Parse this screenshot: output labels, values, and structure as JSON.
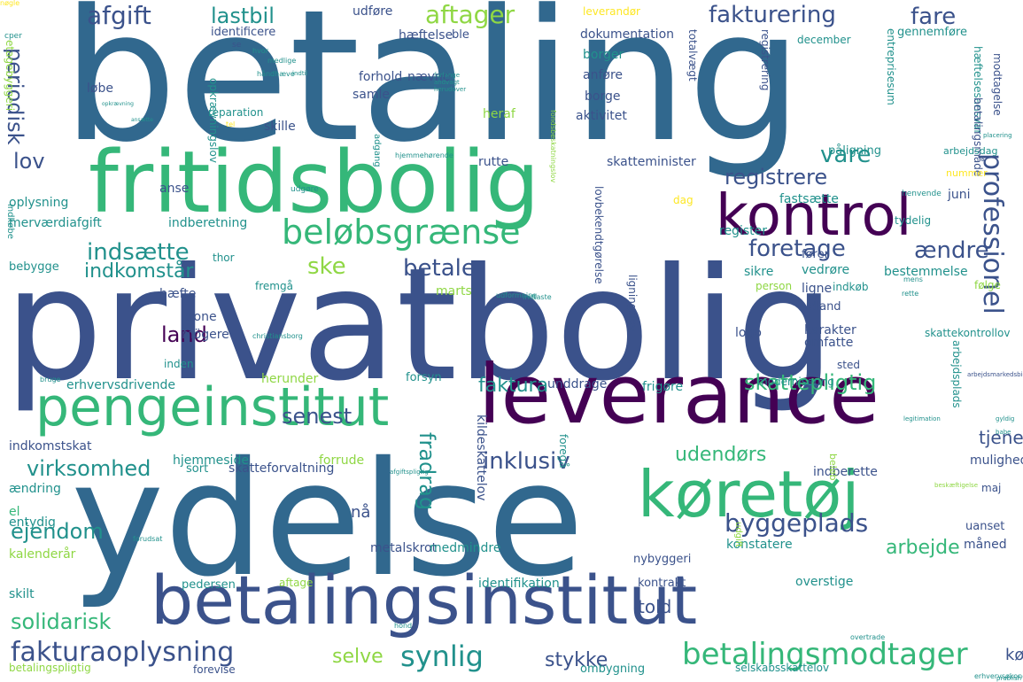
{
  "palette": {
    "purple": "#440154",
    "indigo": "#3b528b",
    "blue": "#31688e",
    "teal": "#21918c",
    "green": "#35b779",
    "lime": "#8fd744",
    "yellow": "#fde725",
    "background": "#ffffff"
  },
  "words": [
    {
      "text": "betaling",
      "color": "blue",
      "rot": 0
    },
    {
      "text": "privatbolig",
      "color": "indigo",
      "rot": 0
    },
    {
      "text": "ydelse",
      "color": "blue",
      "rot": 0
    },
    {
      "text": "fritidsbolig",
      "color": "green",
      "rot": 0
    },
    {
      "text": "betalingsinstitut",
      "color": "indigo",
      "rot": 0
    },
    {
      "text": "leverance",
      "color": "purple",
      "rot": 0
    },
    {
      "text": "pengeinstitut",
      "color": "green",
      "rot": 0
    },
    {
      "text": "køretøj",
      "color": "green",
      "rot": 0
    },
    {
      "text": "kontrol",
      "color": "purple",
      "rot": 0
    },
    {
      "text": "beløbsgrænse",
      "color": "green",
      "rot": 0
    },
    {
      "text": "betalingsmodtager",
      "color": "green",
      "rot": 0
    },
    {
      "text": "fakturaoplysning",
      "color": "indigo",
      "rot": 0
    },
    {
      "text": "professionel",
      "color": "indigo",
      "rot": 90
    },
    {
      "text": "indsætte",
      "color": "teal",
      "rot": 0
    },
    {
      "text": "foretage",
      "color": "indigo",
      "rot": 0
    },
    {
      "text": "virksomhed",
      "color": "teal",
      "rot": 0
    },
    {
      "text": "byggeplads",
      "color": "indigo",
      "rot": 0
    },
    {
      "text": "inklusiv",
      "color": "indigo",
      "rot": 0
    },
    {
      "text": "skattepligtig",
      "color": "green",
      "rot": 0
    },
    {
      "text": "synlig",
      "color": "teal",
      "rot": 0
    },
    {
      "text": "fakturering",
      "color": "indigo",
      "rot": 0
    },
    {
      "text": "aftager",
      "color": "lime",
      "rot": 0
    },
    {
      "text": "afgift",
      "color": "indigo",
      "rot": 0
    },
    {
      "text": "lastbil",
      "color": "teal",
      "rot": 0
    },
    {
      "text": "fare",
      "color": "indigo",
      "rot": 0
    },
    {
      "text": "periodisk",
      "color": "indigo",
      "rot": 90
    },
    {
      "text": "lov",
      "color": "indigo",
      "rot": 0
    },
    {
      "text": "vare",
      "color": "teal",
      "rot": 0
    },
    {
      "text": "registrere",
      "color": "indigo",
      "rot": 0
    },
    {
      "text": "ændre",
      "color": "indigo",
      "rot": 0
    },
    {
      "text": "ske",
      "color": "lime",
      "rot": 0
    },
    {
      "text": "betale",
      "color": "indigo",
      "rot": 0
    },
    {
      "text": "indkomstår",
      "color": "teal",
      "rot": 0
    },
    {
      "text": "land",
      "color": "purple",
      "rot": 0
    },
    {
      "text": "senest",
      "color": "indigo",
      "rot": 0
    },
    {
      "text": "faktura",
      "color": "teal",
      "rot": 0
    },
    {
      "text": "udendørs",
      "color": "green",
      "rot": 0
    },
    {
      "text": "arbejde",
      "color": "green",
      "rot": 0
    },
    {
      "text": "ejendom",
      "color": "teal",
      "rot": 0
    },
    {
      "text": "solidarisk",
      "color": "green",
      "rot": 0
    },
    {
      "text": "selve",
      "color": "lime",
      "rot": 0
    },
    {
      "text": "stykke",
      "color": "indigo",
      "rot": 0
    },
    {
      "text": "told",
      "color": "indigo",
      "rot": 0
    },
    {
      "text": "køb",
      "color": "indigo",
      "rot": 0
    },
    {
      "text": "tjene",
      "color": "indigo",
      "rot": 0
    },
    {
      "text": "fradrag",
      "color": "teal",
      "rot": 90
    },
    {
      "text": "nå",
      "color": "indigo",
      "rot": 0
    },
    {
      "text": "anse",
      "color": "indigo",
      "rot": 0
    },
    {
      "text": "oplysning",
      "color": "teal",
      "rot": 0
    },
    {
      "text": "merværdiafgift",
      "color": "teal",
      "rot": 0
    },
    {
      "text": "indberetning",
      "color": "teal",
      "rot": 0
    },
    {
      "text": "rutte",
      "color": "indigo",
      "rot": 0
    },
    {
      "text": "skatteminister",
      "color": "indigo",
      "rot": 0
    },
    {
      "text": "fastsætte",
      "color": "teal",
      "rot": 0
    },
    {
      "text": "juni",
      "color": "indigo",
      "rot": 0
    },
    {
      "text": "dag",
      "color": "yellow",
      "rot": 0
    },
    {
      "text": "register",
      "color": "teal",
      "rot": 0
    },
    {
      "text": "følge",
      "color": "lime",
      "rot": 0
    },
    {
      "text": "thor",
      "color": "teal",
      "rot": 0
    },
    {
      "text": "bebygge",
      "color": "teal",
      "rot": 0
    },
    {
      "text": "hæfte",
      "color": "indigo",
      "rot": 0
    },
    {
      "text": "krone",
      "color": "indigo",
      "rot": 0
    },
    {
      "text": "mögere",
      "color": "indigo",
      "rot": 0
    },
    {
      "text": "inden",
      "color": "teal",
      "rot": 0
    },
    {
      "text": "herunder",
      "color": "lime",
      "rot": 0
    },
    {
      "text": "erhvervsdrivende",
      "color": "teal",
      "rot": 0
    },
    {
      "text": "indkomstskat",
      "color": "indigo",
      "rot": 0
    },
    {
      "text": "hjemmeside",
      "color": "teal",
      "rot": 0
    },
    {
      "text": "forrude",
      "color": "lime",
      "rot": 0
    },
    {
      "text": "skatteforvaltning",
      "color": "indigo",
      "rot": 0
    },
    {
      "text": "sort",
      "color": "teal",
      "rot": 0
    },
    {
      "text": "ændring",
      "color": "teal",
      "rot": 0
    },
    {
      "text": "entydig",
      "color": "teal",
      "rot": 0
    },
    {
      "text": "el",
      "color": "green",
      "rot": 0
    },
    {
      "text": "kalenderår",
      "color": "lime",
      "rot": 0
    },
    {
      "text": "skilt",
      "color": "teal",
      "rot": 0
    },
    {
      "text": "metalskrot",
      "color": "indigo",
      "rot": 0
    },
    {
      "text": "medmindre",
      "color": "teal",
      "rot": 0
    },
    {
      "text": "identifikation",
      "color": "teal",
      "rot": 0
    },
    {
      "text": "konstatere",
      "color": "teal",
      "rot": 0
    },
    {
      "text": "nybyggeri",
      "color": "indigo",
      "rot": 0
    },
    {
      "text": "kontrakt",
      "color": "indigo",
      "rot": 0
    },
    {
      "text": "overstige",
      "color": "teal",
      "rot": 0
    },
    {
      "text": "måned",
      "color": "indigo",
      "rot": 0
    },
    {
      "text": "uanset",
      "color": "indigo",
      "rot": 0
    },
    {
      "text": "maj",
      "color": "indigo",
      "rot": 0
    },
    {
      "text": "mulighed",
      "color": "indigo",
      "rot": 0
    },
    {
      "text": "indberette",
      "color": "indigo",
      "rot": 0
    },
    {
      "text": "pedersen",
      "color": "teal",
      "rot": 0
    },
    {
      "text": "aftage",
      "color": "lime",
      "rot": 0
    },
    {
      "text": "ombygning",
      "color": "teal",
      "rot": 0
    },
    {
      "text": "forevise",
      "color": "indigo",
      "rot": 0
    },
    {
      "text": "betalingspligtig",
      "color": "lime",
      "rot": 0
    },
    {
      "text": "selskabsskattelov",
      "color": "teal",
      "rot": 0
    },
    {
      "text": "kildeskattelov",
      "color": "indigo",
      "rot": 90
    },
    {
      "text": "frigøre",
      "color": "teal",
      "rot": 0
    },
    {
      "text": "unddrage",
      "color": "indigo",
      "rot": 0
    },
    {
      "text": "forsyn",
      "color": "teal",
      "rot": 0
    },
    {
      "text": "sted",
      "color": "indigo",
      "rot": 0
    },
    {
      "text": "karakter",
      "color": "indigo",
      "rot": 0
    },
    {
      "text": "omfatte",
      "color": "indigo",
      "rot": 0
    },
    {
      "text": "logo",
      "color": "indigo",
      "rot": 0
    },
    {
      "text": "udland",
      "color": "indigo",
      "rot": 0
    },
    {
      "text": "ligne",
      "color": "indigo",
      "rot": 0
    },
    {
      "text": "vedrøre",
      "color": "teal",
      "rot": 0
    },
    {
      "text": "bestemmelse",
      "color": "teal",
      "rot": 0
    },
    {
      "text": "fører",
      "color": "indigo",
      "rot": 0
    },
    {
      "text": "sikre",
      "color": "teal",
      "rot": 0
    },
    {
      "text": "indkøb",
      "color": "teal",
      "rot": 0
    },
    {
      "text": "person",
      "color": "lime",
      "rot": 0
    },
    {
      "text": "fremgå",
      "color": "teal",
      "rot": 0
    },
    {
      "text": "tydelig",
      "color": "teal",
      "rot": 0
    },
    {
      "text": "udføre",
      "color": "indigo",
      "rot": 0
    },
    {
      "text": "identificere",
      "color": "indigo",
      "rot": 0
    },
    {
      "text": "hæftelse",
      "color": "indigo",
      "rot": 0
    },
    {
      "text": "ble",
      "color": "indigo",
      "rot": 0
    },
    {
      "text": "dokumentation",
      "color": "indigo",
      "rot": 0
    },
    {
      "text": "leverandør",
      "color": "yellow",
      "rot": 0
    },
    {
      "text": "gennemføre",
      "color": "teal",
      "rot": 0
    },
    {
      "text": "december",
      "color": "teal",
      "rot": 0
    },
    {
      "text": "forhold",
      "color": "indigo",
      "rot": 0
    },
    {
      "text": "nævne",
      "color": "indigo",
      "rot": 0
    },
    {
      "text": "anføre",
      "color": "indigo",
      "rot": 0
    },
    {
      "text": "borger",
      "color": "teal",
      "rot": 0
    },
    {
      "text": "samle",
      "color": "indigo",
      "rot": 0
    },
    {
      "text": "løbe",
      "color": "indigo",
      "rot": 0
    },
    {
      "text": "borge",
      "color": "indigo",
      "rot": 0
    },
    {
      "text": "heraf",
      "color": "lime",
      "rot": 0
    },
    {
      "text": "aktivitet",
      "color": "indigo",
      "rot": 0
    },
    {
      "text": "skille",
      "color": "indigo",
      "rot": 0
    },
    {
      "text": "reparation",
      "color": "teal",
      "rot": 0
    },
    {
      "text": "totalvægt",
      "color": "indigo",
      "rot": 90
    },
    {
      "text": "entreprisesum",
      "color": "teal",
      "rot": 90
    },
    {
      "text": "registrering",
      "color": "indigo",
      "rot": 90
    },
    {
      "text": "påligning",
      "color": "teal",
      "rot": 0
    },
    {
      "text": "hæftelsesansvar",
      "color": "teal",
      "rot": 90
    },
    {
      "text": "betalingsmåde",
      "color": "indigo",
      "rot": 90
    },
    {
      "text": "modtagelse",
      "color": "indigo",
      "rot": 90
    },
    {
      "text": "lovbekendtgørelse",
      "color": "indigo",
      "rot": 90
    },
    {
      "text": "opkrævningslov",
      "color": "teal",
      "rot": 90
    },
    {
      "text": "etagebyggeri",
      "color": "lime",
      "rot": 90
    },
    {
      "text": "ligningslov",
      "color": "indigo",
      "rot": 90
    },
    {
      "text": "arbejdsplads",
      "color": "teal",
      "rot": 90
    },
    {
      "text": "arbejdsdag",
      "color": "teal",
      "rot": 0
    },
    {
      "text": "marts",
      "color": "lime",
      "rot": 0
    },
    {
      "text": "modernisering",
      "color": "teal",
      "rot": 0
    },
    {
      "text": "skattekontrollov",
      "color": "teal",
      "rot": 0
    },
    {
      "text": "foregå",
      "color": "teal",
      "rot": 90
    },
    {
      "text": "beløb",
      "color": "lime",
      "rot": 90
    },
    {
      "text": "udgift",
      "color": "lime",
      "rot": 90
    },
    {
      "text": "indkøbe",
      "color": "teal",
      "rot": 90
    },
    {
      "text": "udgøre",
      "color": "teal",
      "rot": 0
    },
    {
      "text": "nummer",
      "color": "yellow",
      "rot": 0
    },
    {
      "text": "adgang",
      "color": "teal",
      "rot": 90
    },
    {
      "text": "cper",
      "color": "teal",
      "rot": 0
    },
    {
      "text": "se",
      "color": "indigo",
      "rot": 0
    },
    {
      "text": "tel",
      "color": "yellow",
      "rot": 0
    },
    {
      "text": "fondsbeskatningslov",
      "color": "lime",
      "rot": 90
    },
    {
      "text": "hjemmehørende",
      "color": "teal",
      "rot": 0
    },
    {
      "text": "legitimation",
      "color": "teal",
      "rot": 0
    },
    {
      "text": "erhvervsøkonomisk",
      "color": "teal",
      "rot": 0
    },
    {
      "text": "prablish",
      "color": "teal",
      "rot": 0
    },
    {
      "text": "afgiftspligtig",
      "color": "teal",
      "rot": 0
    },
    {
      "text": "christiansborg",
      "color": "teal",
      "rot": 0
    },
    {
      "text": "placering",
      "color": "teal",
      "rot": 0
    },
    {
      "text": "arbejdsmarkedsbidrag",
      "color": "indigo",
      "rot": 0
    },
    {
      "text": "beskæftigelse",
      "color": "lime",
      "rot": 0
    },
    {
      "text": "opkrævning",
      "color": "teal",
      "rot": 0
    },
    {
      "text": "ansætte",
      "color": "teal",
      "rot": 0
    },
    {
      "text": "bruge",
      "color": "teal",
      "rot": 0
    },
    {
      "text": "mens",
      "color": "teal",
      "rot": 0
    },
    {
      "text": "rette",
      "color": "teal",
      "rot": 0
    },
    {
      "text": "forlange",
      "color": "teal",
      "rot": 0
    },
    {
      "text": "andvagt",
      "color": "teal",
      "rot": 0
    },
    {
      "text": "herudover",
      "color": "teal",
      "rot": 0
    },
    {
      "text": "håndhæve",
      "color": "teal",
      "rot": 0
    },
    {
      "text": "medlige",
      "color": "teal",
      "rot": 0
    },
    {
      "text": "indtaste",
      "color": "teal",
      "rot": 0
    },
    {
      "text": "udformning",
      "color": "teal",
      "rot": 0
    },
    {
      "text": "hond",
      "color": "teal",
      "rot": 0
    },
    {
      "text": "overtrade",
      "color": "teal",
      "rot": 0
    },
    {
      "text": "forudsat",
      "color": "teal",
      "rot": 0
    },
    {
      "text": "gyldig",
      "color": "teal",
      "rot": 0
    },
    {
      "text": "babe",
      "color": "teal",
      "rot": 0
    },
    {
      "text": "hvor",
      "color": "teal",
      "rot": 0
    },
    {
      "text": "indtil",
      "color": "teal",
      "rot": 0
    },
    {
      "text": "henvende",
      "color": "teal",
      "rot": 0
    },
    {
      "text": "nøgle",
      "color": "yellow",
      "rot": 0
    }
  ]
}
